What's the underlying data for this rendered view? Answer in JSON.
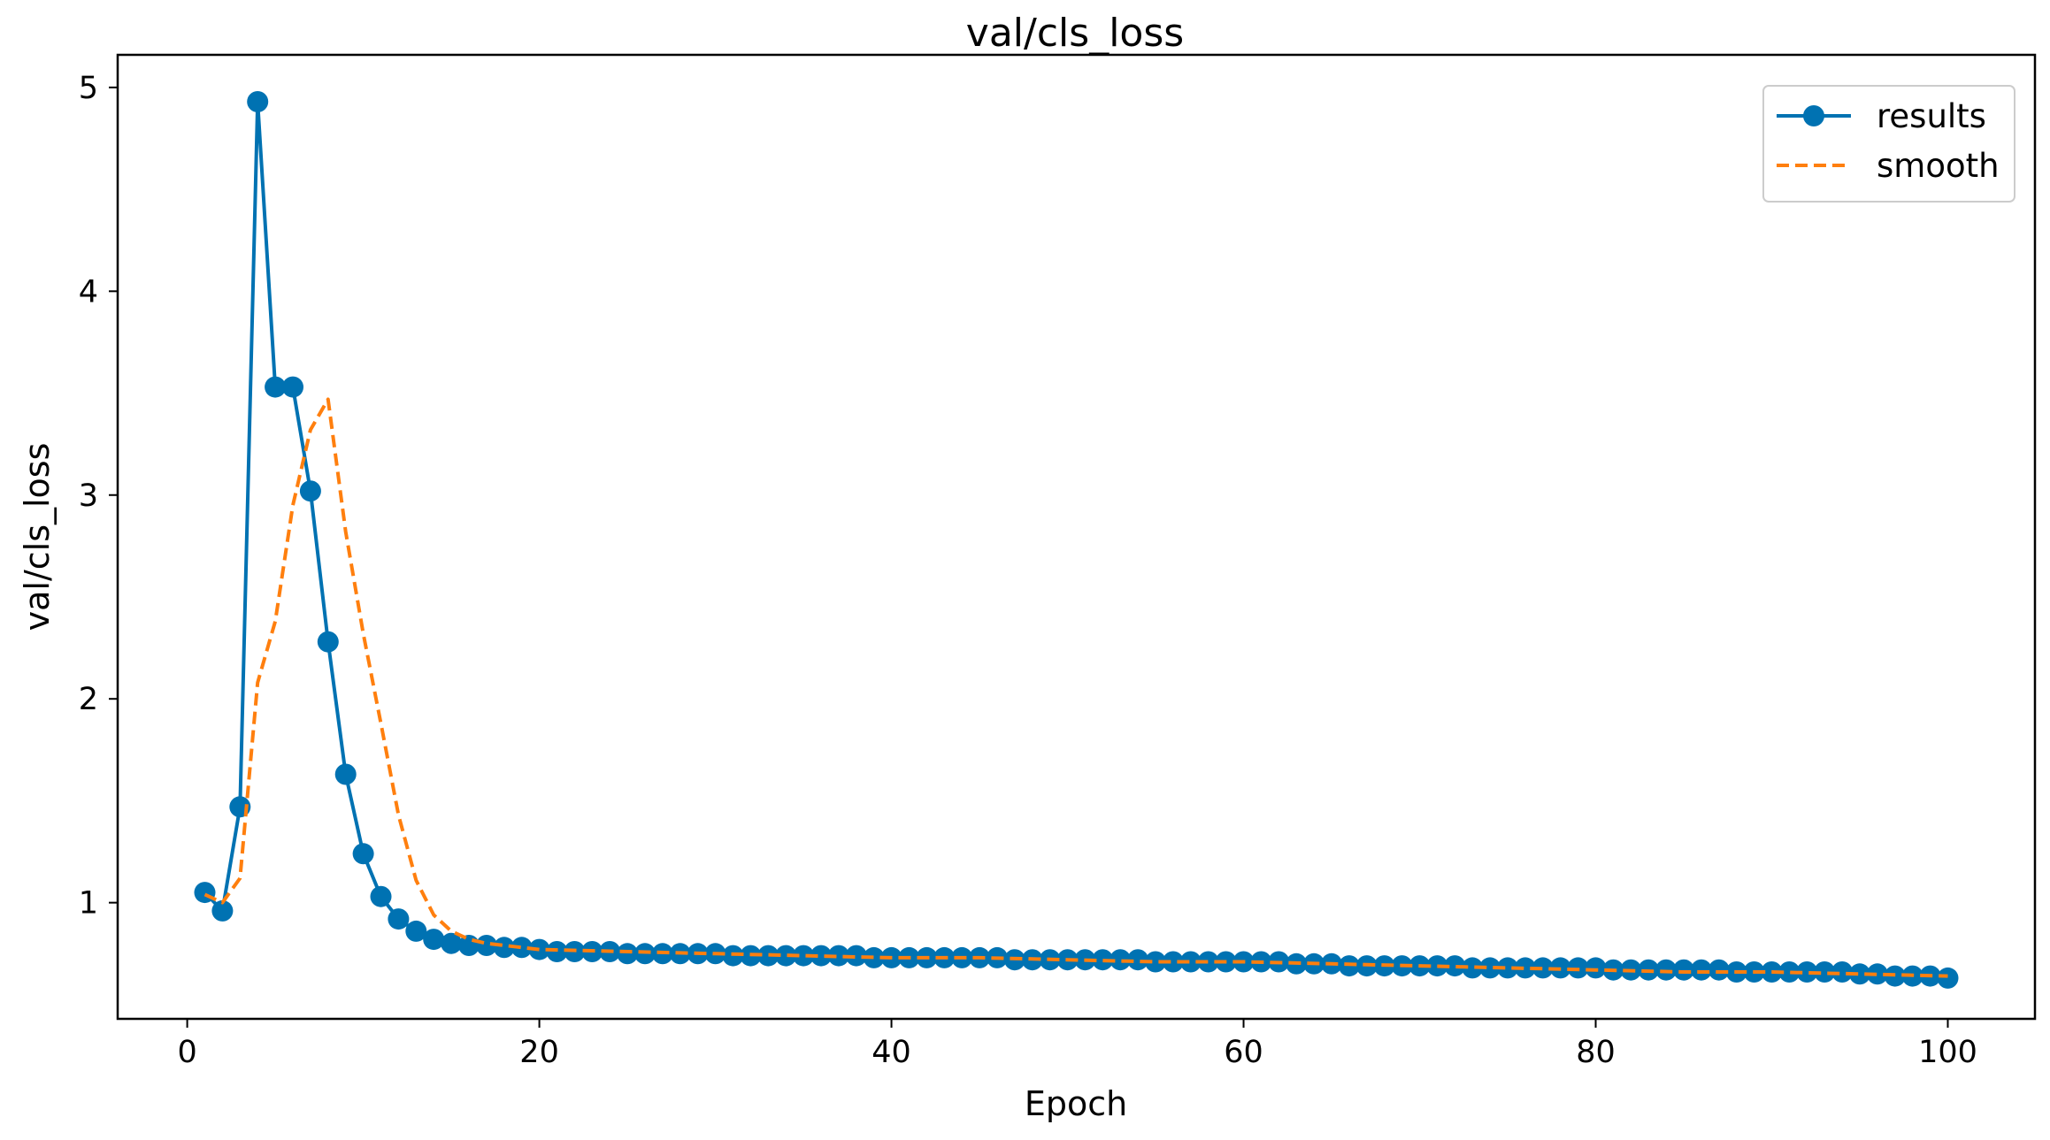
{
  "chart_data": {
    "type": "line",
    "title": "val/cls_loss",
    "xlabel": "Epoch",
    "ylabel": "val/cls_loss",
    "xlim": [
      -3.95,
      104.95
    ],
    "ylim": [
      0.43,
      5.16
    ],
    "xticks": [
      0,
      20,
      40,
      60,
      80,
      100
    ],
    "yticks": [
      1,
      2,
      3,
      4,
      5
    ],
    "grid": false,
    "legend_position": "top-right",
    "series": [
      {
        "name": "results",
        "style": "line-markers",
        "color": "#0072B2",
        "x": [
          1,
          2,
          3,
          4,
          5,
          6,
          7,
          8,
          9,
          10,
          11,
          12,
          13,
          14,
          15,
          16,
          17,
          18,
          19,
          20,
          21,
          22,
          23,
          24,
          25,
          26,
          27,
          28,
          29,
          30,
          31,
          32,
          33,
          34,
          35,
          36,
          37,
          38,
          39,
          40,
          41,
          42,
          43,
          44,
          45,
          46,
          47,
          48,
          49,
          50,
          51,
          52,
          53,
          54,
          55,
          56,
          57,
          58,
          59,
          60,
          61,
          62,
          63,
          64,
          65,
          66,
          67,
          68,
          69,
          70,
          71,
          72,
          73,
          74,
          75,
          76,
          77,
          78,
          79,
          80,
          81,
          82,
          83,
          84,
          85,
          86,
          87,
          88,
          89,
          90,
          91,
          92,
          93,
          94,
          95,
          96,
          97,
          98,
          99,
          100
        ],
        "y": [
          1.05,
          0.96,
          1.47,
          4.93,
          3.53,
          3.53,
          3.02,
          2.28,
          1.63,
          1.24,
          1.03,
          0.92,
          0.86,
          0.82,
          0.8,
          0.79,
          0.79,
          0.78,
          0.78,
          0.77,
          0.76,
          0.76,
          0.76,
          0.76,
          0.75,
          0.75,
          0.75,
          0.75,
          0.75,
          0.75,
          0.74,
          0.74,
          0.74,
          0.74,
          0.74,
          0.74,
          0.74,
          0.74,
          0.73,
          0.73,
          0.73,
          0.73,
          0.73,
          0.73,
          0.73,
          0.73,
          0.72,
          0.72,
          0.72,
          0.72,
          0.72,
          0.72,
          0.72,
          0.72,
          0.71,
          0.71,
          0.71,
          0.71,
          0.71,
          0.71,
          0.71,
          0.71,
          0.7,
          0.7,
          0.7,
          0.69,
          0.69,
          0.69,
          0.69,
          0.69,
          0.69,
          0.69,
          0.68,
          0.68,
          0.68,
          0.68,
          0.68,
          0.68,
          0.68,
          0.68,
          0.67,
          0.67,
          0.67,
          0.67,
          0.67,
          0.67,
          0.67,
          0.66,
          0.66,
          0.66,
          0.66,
          0.66,
          0.66,
          0.66,
          0.65,
          0.65,
          0.64,
          0.64,
          0.64,
          0.63
        ]
      },
      {
        "name": "smooth",
        "style": "dashed",
        "color": "#FF7F0E",
        "x": [
          1,
          2,
          3,
          4,
          5,
          6,
          7,
          8,
          9,
          10,
          11,
          12,
          13,
          14,
          15,
          16,
          17,
          18,
          19,
          20,
          25,
          30,
          35,
          40,
          45,
          50,
          55,
          60,
          65,
          70,
          75,
          80,
          85,
          90,
          95,
          100
        ],
        "y": [
          1.04,
          1.0,
          1.12,
          2.08,
          2.38,
          2.95,
          3.32,
          3.47,
          2.82,
          2.32,
          1.88,
          1.43,
          1.11,
          0.94,
          0.86,
          0.82,
          0.8,
          0.79,
          0.78,
          0.77,
          0.76,
          0.75,
          0.74,
          0.73,
          0.73,
          0.72,
          0.71,
          0.71,
          0.7,
          0.69,
          0.68,
          0.67,
          0.66,
          0.66,
          0.65,
          0.64
        ]
      }
    ]
  }
}
